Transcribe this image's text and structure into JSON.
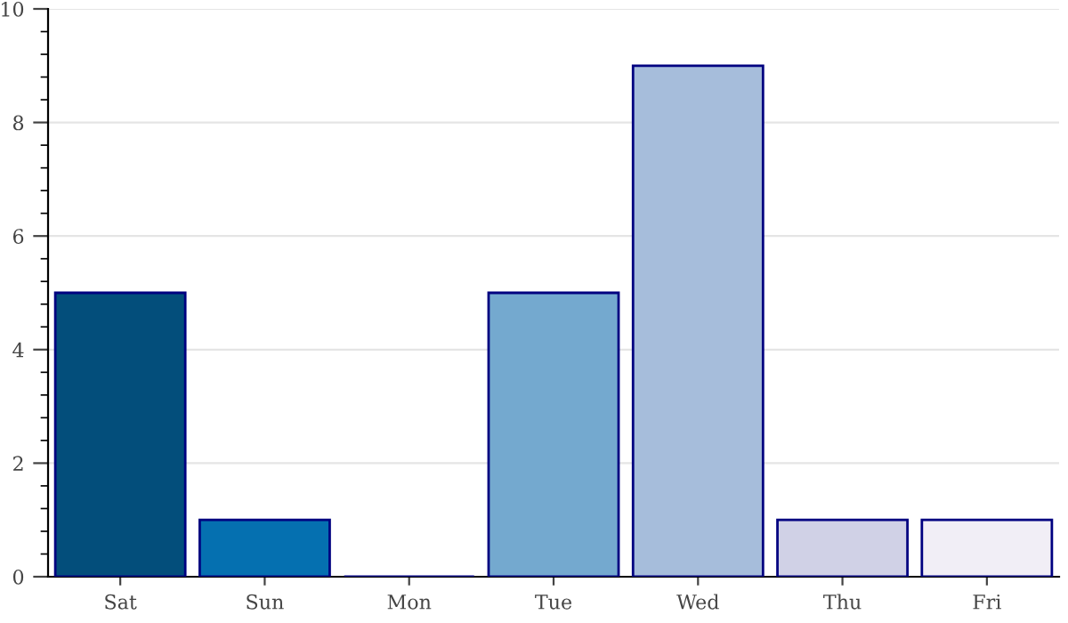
{
  "chart_data": {
    "type": "bar",
    "categories": [
      "Sat",
      "Sun",
      "Mon",
      "Tue",
      "Wed",
      "Thu",
      "Fri"
    ],
    "values": [
      5,
      1,
      0,
      5,
      9,
      1,
      1
    ],
    "colors": [
      "#034e7b",
      "#0570b0",
      "#000080",
      "#74a9cf",
      "#a6bddb",
      "#d0d1e6",
      "#f1eef6"
    ],
    "ylim": [
      0,
      10
    ],
    "yticks": [
      0,
      2,
      4,
      6,
      8,
      10
    ],
    "grid": "y"
  }
}
